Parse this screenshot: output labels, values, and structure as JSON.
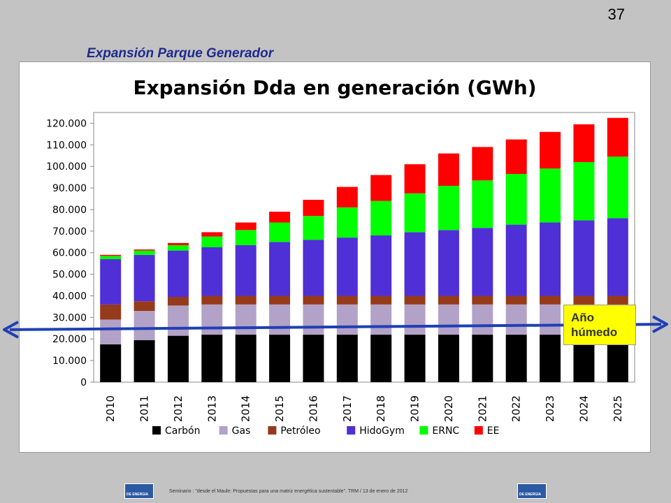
{
  "page": {
    "number": "37",
    "title": "Expansión Parque Generador"
  },
  "note": {
    "text": "Año\nhúmedo",
    "color": "#ffff00"
  },
  "footer": {
    "text": "Seminario : \"desde el Maule: Propuestas para una matriz energética sustentable\". TRM / 13 de enero de 2012",
    "logo_text": "DE ENERGIA"
  },
  "chart_data": {
    "type": "bar",
    "stacked": true,
    "title": "Expansión Dda en generación (GWh)",
    "xlabel": "",
    "ylabel": "",
    "ylim": [
      0,
      125000
    ],
    "yticks": [
      0,
      10000,
      20000,
      30000,
      40000,
      50000,
      60000,
      70000,
      80000,
      90000,
      100000,
      110000,
      120000
    ],
    "ytick_labels": [
      "0",
      "10.000",
      "20.000",
      "30.000",
      "40.000",
      "50.000",
      "60.000",
      "70.000",
      "80.000",
      "90.000",
      "100.000",
      "110.000",
      "120.000"
    ],
    "grid": false,
    "legend_position": "bottom",
    "categories": [
      "2010",
      "2011",
      "2012",
      "2013",
      "2014",
      "2015",
      "2016",
      "2017",
      "2018",
      "2019",
      "2020",
      "2021",
      "2022",
      "2023",
      "2024",
      "2025"
    ],
    "series": [
      {
        "name": "Carbón",
        "color": "#000000",
        "values": [
          17500,
          19500,
          21500,
          22000,
          22000,
          22000,
          22000,
          22000,
          22000,
          22000,
          22000,
          22000,
          22000,
          22000,
          22000,
          22000
        ]
      },
      {
        "name": "Gas",
        "color": "#b3a2c7",
        "values": [
          11500,
          13500,
          14000,
          14000,
          14000,
          14000,
          14000,
          14000,
          14000,
          14000,
          14000,
          14000,
          14000,
          14000,
          14000,
          14000
        ]
      },
      {
        "name": "Petróleo",
        "color": "#953a1a",
        "values": [
          7000,
          4500,
          4000,
          4000,
          4000,
          4000,
          4000,
          4000,
          4000,
          4000,
          4000,
          4000,
          4000,
          4000,
          4000,
          4000
        ]
      },
      {
        "name": "HidoGym",
        "color": "#4f2fd6",
        "values": [
          21000,
          21500,
          21500,
          22500,
          23500,
          25000,
          26000,
          27000,
          28000,
          29500,
          30500,
          31500,
          33000,
          34000,
          35000,
          36000
        ]
      },
      {
        "name": "ERNC",
        "color": "#00ff00",
        "values": [
          1500,
          2000,
          2500,
          5000,
          7000,
          9000,
          11000,
          14000,
          16000,
          18000,
          20500,
          22000,
          23500,
          25000,
          27000,
          28500
        ]
      },
      {
        "name": "EE",
        "color": "#ff0000",
        "values": [
          500,
          500,
          1000,
          2000,
          3500,
          5000,
          7500,
          9500,
          12000,
          13500,
          15000,
          15500,
          16000,
          17000,
          17500,
          18000
        ]
      }
    ],
    "annotation_line": {
      "label": "Año húmedo",
      "y_start": 24000,
      "y_end": 26500,
      "color": "#1f3fb5"
    }
  }
}
